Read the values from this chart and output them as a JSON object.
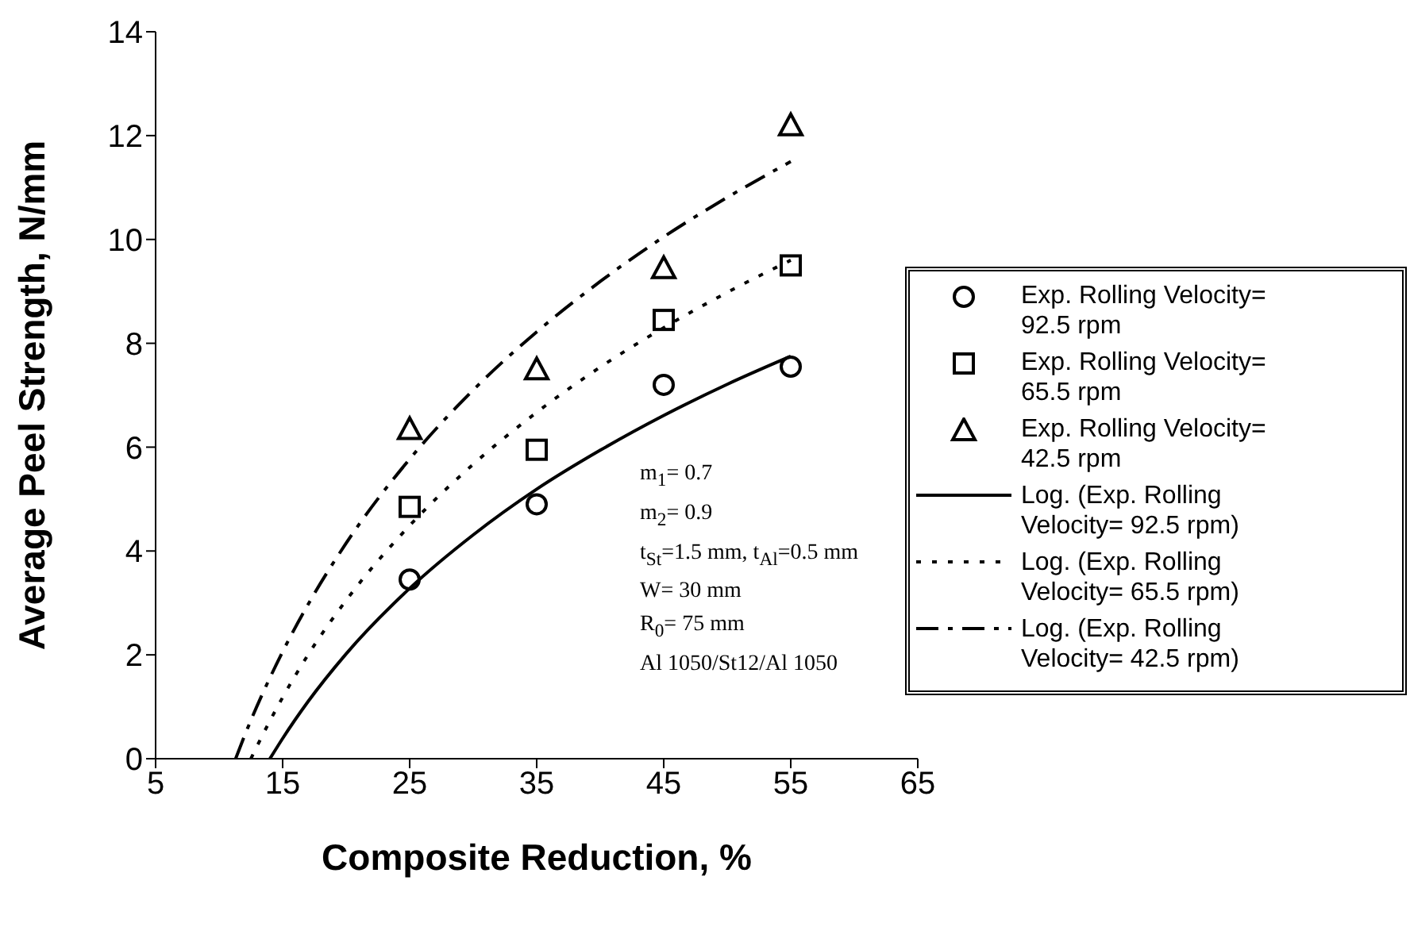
{
  "chart_data": {
    "type": "scatter",
    "xlabel": "Composite Reduction, %",
    "ylabel": "Average Peel Strength, N/mm",
    "xlim": [
      5,
      65
    ],
    "xticks": [
      5,
      15,
      25,
      35,
      45,
      55,
      65
    ],
    "ylim": [
      0,
      14
    ],
    "yticks": [
      0,
      2,
      4,
      6,
      8,
      10,
      12,
      14
    ],
    "grid": false,
    "legend": "right",
    "series": [
      {
        "name": "Exp. Rolling Velocity= 92.5 rpm",
        "marker": "circle",
        "color": "#000000",
        "x": [
          25,
          35,
          45,
          55
        ],
        "values": [
          3.45,
          4.9,
          7.2,
          7.55
        ]
      },
      {
        "name": "Exp. Rolling Velocity= 65.5 rpm",
        "marker": "square",
        "color": "#000000",
        "x": [
          25,
          35,
          45,
          55
        ],
        "values": [
          4.85,
          5.95,
          8.45,
          9.5
        ]
      },
      {
        "name": "Exp. Rolling Velocity= 42.5 rpm",
        "marker": "triangle",
        "color": "#000000",
        "x": [
          25,
          35,
          45,
          55
        ],
        "values": [
          6.35,
          7.5,
          9.45,
          12.2
        ]
      },
      {
        "name": "Log. (Exp. Rolling Velocity= 92.5 rpm)",
        "type": "line",
        "line_style": "solid",
        "color": "#000000",
        "x": [
          14,
          15,
          17,
          20,
          25,
          30,
          35,
          40,
          45,
          50,
          55
        ],
        "values": [
          0,
          0.39,
          1.1,
          2.02,
          3.28,
          4.31,
          5.19,
          5.94,
          6.61,
          7.21,
          7.75
        ]
      },
      {
        "name": "Log. (Exp. Rolling Velocity= 65.5 rpm)",
        "type": "line",
        "line_style": "dotted",
        "color": "#000000",
        "x": [
          12.5,
          13,
          15,
          17,
          20,
          25,
          30,
          35,
          40,
          45,
          50,
          55
        ],
        "values": [
          0,
          0.25,
          1.18,
          2.0,
          3.05,
          4.49,
          5.67,
          6.67,
          7.54,
          8.3,
          8.98,
          9.6
        ]
      },
      {
        "name": "Log. (Exp. Rolling Velocity= 42.5 rpm)",
        "type": "line",
        "line_style": "dashdot",
        "color": "#000000",
        "x": [
          11.3,
          12,
          15,
          17,
          20,
          25,
          30,
          35,
          40,
          45,
          50,
          55
        ],
        "values": [
          0,
          0.44,
          2.06,
          2.97,
          4.15,
          5.77,
          7.1,
          8.22,
          9.19,
          10.05,
          10.81,
          11.5
        ]
      }
    ],
    "annotations": [
      "m$_{1}$= 0.7",
      "m$_{2}$= 0.9",
      "t$_{St}$=1.5 mm, t$_{Al}$=0.5 mm",
      "W= 30 mm",
      "R$_{0}$= 75 mm",
      "Al 1050/St12/Al 1050"
    ]
  }
}
